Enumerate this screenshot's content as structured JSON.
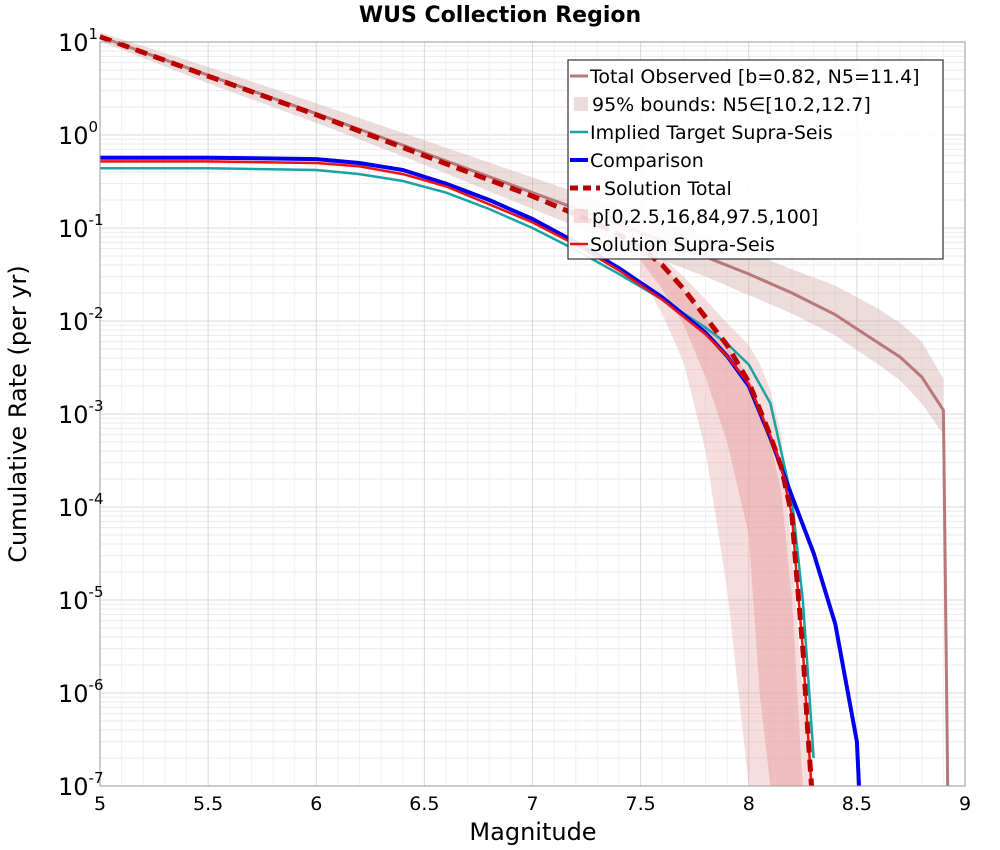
{
  "chart_data": {
    "type": "line",
    "title": "WUS Collection Region",
    "xlabel": "Magnitude",
    "ylabel": "Cumulative Rate (per yr)",
    "xlim": [
      5,
      9
    ],
    "ylim": [
      1e-07,
      10
    ],
    "yscale": "log",
    "grid": true,
    "legend_position": "top-right",
    "x_ticks": [
      "5",
      "5.5",
      "6",
      "6.5",
      "7",
      "7.5",
      "8",
      "8.5",
      "9"
    ],
    "y_ticks": [
      {
        "base": "10",
        "exp": "-7"
      },
      {
        "base": "10",
        "exp": "-6"
      },
      {
        "base": "10",
        "exp": "-5"
      },
      {
        "base": "10",
        "exp": "-4"
      },
      {
        "base": "10",
        "exp": "-3"
      },
      {
        "base": "10",
        "exp": "-2"
      },
      {
        "base": "10",
        "exp": "-1"
      },
      {
        "base": "10",
        "exp": "0"
      },
      {
        "base": "10",
        "exp": "1"
      }
    ],
    "series": [
      {
        "name": "Total Observed [b=0.82, N5=11.4]",
        "color": "#b87878",
        "style": "solid",
        "x": [
          5.0,
          5.5,
          6.0,
          6.5,
          7.0,
          7.5,
          7.8,
          8.0,
          8.2,
          8.4,
          8.6,
          8.7,
          8.8,
          8.9,
          8.92
        ],
        "y": [
          11.4,
          4.4,
          1.7,
          0.64,
          0.24,
          0.09,
          0.049,
          0.032,
          0.02,
          0.0117,
          0.0058,
          0.0041,
          0.0025,
          0.0011,
          1e-07
        ]
      },
      {
        "name": "95% bounds: N5∈[10.2,12.7]",
        "color": "#c99a9a",
        "style": "band",
        "x": [
          5.0,
          5.5,
          6.0,
          6.5,
          7.0,
          7.5,
          7.8,
          8.0,
          8.2,
          8.4,
          8.6,
          8.7,
          8.8,
          8.9
        ],
        "y_lower": [
          10.2,
          3.6,
          1.35,
          0.48,
          0.16,
          0.055,
          0.03,
          0.019,
          0.012,
          0.007,
          0.0034,
          0.0023,
          0.0013,
          0.0006
        ],
        "y_upper": [
          12.7,
          5.4,
          2.2,
          0.88,
          0.35,
          0.14,
          0.08,
          0.055,
          0.036,
          0.024,
          0.0135,
          0.0095,
          0.006,
          0.0024
        ]
      },
      {
        "name": "Implied Target Supra-Seis",
        "color": "#1aa3a3",
        "style": "solid",
        "x": [
          5.0,
          5.5,
          6.0,
          6.2,
          6.4,
          6.6,
          6.8,
          7.0,
          7.2,
          7.4,
          7.6,
          7.8,
          7.9,
          8.0,
          8.1,
          8.2,
          8.25,
          8.28,
          8.3
        ],
        "y": [
          0.44,
          0.44,
          0.42,
          0.38,
          0.32,
          0.24,
          0.16,
          0.1,
          0.058,
          0.032,
          0.017,
          0.0085,
          0.0057,
          0.0034,
          0.0013,
          0.00012,
          1e-05,
          1e-06,
          2e-07
        ]
      },
      {
        "name": "Comparison",
        "color": "#0000ee",
        "style": "solid",
        "x": [
          5.0,
          5.5,
          6.0,
          6.2,
          6.4,
          6.6,
          6.8,
          7.0,
          7.2,
          7.4,
          7.6,
          7.8,
          7.9,
          8.0,
          8.1,
          8.2,
          8.3,
          8.4,
          8.5,
          8.51
        ],
        "y": [
          0.57,
          0.57,
          0.55,
          0.5,
          0.42,
          0.3,
          0.2,
          0.125,
          0.07,
          0.037,
          0.018,
          0.0075,
          0.0042,
          0.002,
          0.00055,
          0.00013,
          3.2e-05,
          5.5e-06,
          3e-07,
          1e-07
        ]
      },
      {
        "name": "Solution Total",
        "color": "#bb0000",
        "style": "dashed",
        "x": [
          5.0,
          5.5,
          6.0,
          6.5,
          7.0,
          7.2,
          7.4,
          7.5,
          7.6,
          7.7,
          7.8,
          7.9,
          8.0,
          8.1,
          8.15,
          8.2,
          8.22,
          8.25,
          8.27,
          8.29
        ],
        "y": [
          11.4,
          4.3,
          1.65,
          0.6,
          0.22,
          0.14,
          0.085,
          0.062,
          0.04,
          0.022,
          0.011,
          0.0055,
          0.0022,
          0.00058,
          0.00027,
          8e-05,
          2e-05,
          3e-06,
          5e-07,
          1e-07
        ]
      },
      {
        "name": "p[0,2.5,16,84,97.5,100]",
        "color": "#e8a0a0",
        "style": "percentile-bands",
        "x": [
          7.5,
          7.6,
          7.7,
          7.8,
          7.9,
          8.0,
          8.05,
          8.1,
          8.15,
          8.2,
          8.25,
          8.3
        ],
        "bands": [
          {
            "lower": [
              0.03,
              0.012,
              0.0035,
              0.0004,
              1.3e-05,
              1e-07,
              1e-07,
              1e-07,
              1e-07,
              1e-07,
              1e-07,
              1e-07
            ],
            "upper": [
              0.07,
              0.048,
              0.03,
              0.017,
              0.0095,
              0.0055,
              0.0035,
              0.0018,
              0.0006,
              3e-05,
              1e-06,
              1e-07
            ]
          },
          {
            "lower": [
              0.045,
              0.022,
              0.009,
              0.0025,
              0.0005,
              5e-05,
              1e-06,
              1e-07,
              1e-07,
              1e-07,
              1e-07,
              1e-07
            ],
            "upper": [
              0.065,
              0.04,
              0.022,
              0.011,
              0.0055,
              0.0025,
              0.0012,
              0.0005,
              0.00015,
              1e-05,
              1e-07,
              1e-07
            ]
          }
        ]
      },
      {
        "name": "Solution Supra-Seis",
        "color": "#ee1111",
        "style": "solid",
        "x": [
          5.0,
          5.5,
          6.0,
          6.2,
          6.4,
          6.6,
          6.8,
          7.0,
          7.2,
          7.4,
          7.6,
          7.8,
          7.9,
          8.0,
          8.1,
          8.15,
          8.2,
          8.22,
          8.25,
          8.27,
          8.29
        ],
        "y": [
          0.52,
          0.52,
          0.5,
          0.46,
          0.38,
          0.28,
          0.18,
          0.115,
          0.066,
          0.035,
          0.017,
          0.0072,
          0.0042,
          0.0021,
          0.00058,
          0.00027,
          8e-05,
          2e-05,
          3e-06,
          5e-07,
          1e-07
        ]
      }
    ]
  }
}
